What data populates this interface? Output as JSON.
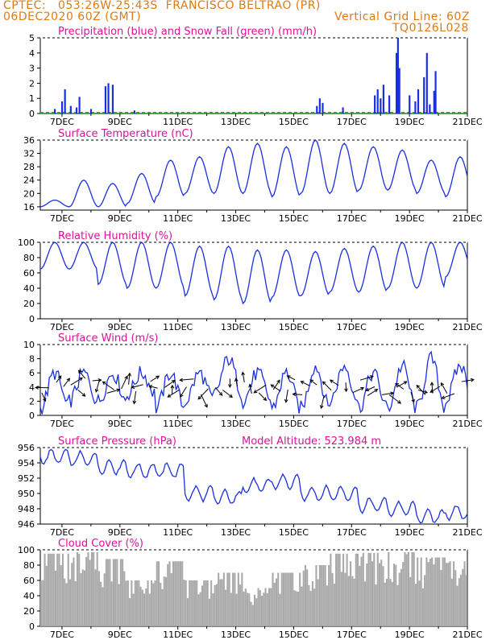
{
  "header": {
    "line1_left": "CPTEC:   053:26W-25:43S  FRANCISCO BELTRAO (PR)",
    "line2_left": "06DEC2020 60Z (GMT)",
    "line2_right": "Vertical Grid Line: 60Z",
    "line3_right": "TQ0126L028"
  },
  "colors": {
    "header": "#e07a10",
    "title": "#e0109a",
    "line": "#1a2fe0",
    "snow": "#20b020",
    "cloud": "#a9a9a9"
  },
  "x_ticks": [
    "7DEC",
    "9DEC",
    "11DEC",
    "13DEC",
    "15DEC",
    "17DEC",
    "19DEC",
    "21DEC"
  ],
  "chart_data": [
    {
      "type": "bar",
      "title": "Precipitation (blue) and Snow Fall (green) (mm/h)",
      "ylim": [
        0,
        5
      ],
      "yticks": [
        "0",
        "1",
        "2",
        "3",
        "4",
        "5"
      ],
      "series": [
        {
          "name": "Precipitation",
          "points": [
            [
              6.75,
              0.3
            ],
            [
              7.0,
              0.8
            ],
            [
              7.1,
              1.6
            ],
            [
              7.3,
              0.5
            ],
            [
              7.5,
              0.4
            ],
            [
              7.6,
              1.1
            ],
            [
              8.0,
              0.3
            ],
            [
              8.5,
              1.8
            ],
            [
              8.6,
              2.0
            ],
            [
              8.75,
              1.9
            ],
            [
              9.5,
              0.2
            ],
            [
              15.8,
              0.5
            ],
            [
              15.9,
              1.0
            ],
            [
              16.0,
              0.7
            ],
            [
              16.7,
              0.4
            ],
            [
              17.8,
              1.2
            ],
            [
              17.9,
              1.6
            ],
            [
              18.0,
              1.0
            ],
            [
              18.1,
              1.9
            ],
            [
              18.3,
              1.2
            ],
            [
              18.55,
              4.0
            ],
            [
              18.6,
              5.0
            ],
            [
              18.65,
              3.0
            ],
            [
              19.0,
              1.2
            ],
            [
              19.2,
              0.8
            ],
            [
              19.3,
              1.6
            ],
            [
              19.5,
              2.4
            ],
            [
              19.6,
              4.0
            ],
            [
              19.7,
              0.6
            ],
            [
              19.85,
              1.5
            ],
            [
              19.9,
              2.8
            ]
          ]
        },
        {
          "name": "Snow Fall",
          "points": []
        }
      ]
    },
    {
      "type": "line",
      "title": "Surface Temperature (nC)",
      "ylim": [
        15,
        36
      ],
      "yticks": [
        "16",
        "20",
        "24",
        "28",
        "32",
        "36"
      ],
      "day_min": [
        16,
        16,
        16,
        17,
        19,
        20,
        20,
        20,
        19,
        20,
        20,
        21,
        21,
        20,
        19,
        18
      ],
      "day_max": [
        18,
        24,
        23,
        26,
        30,
        31,
        34,
        35,
        34,
        36,
        35,
        34,
        33,
        30,
        31,
        30
      ]
    },
    {
      "type": "line",
      "title": "Relative Humidity (%)",
      "ylim": [
        0,
        100
      ],
      "yticks": [
        "0",
        "20",
        "40",
        "60",
        "80",
        "100"
      ],
      "day_min": [
        65,
        65,
        45,
        40,
        40,
        30,
        25,
        20,
        28,
        30,
        35,
        35,
        40,
        40,
        55,
        60
      ],
      "day_max": [
        100,
        100,
        100,
        100,
        100,
        95,
        95,
        90,
        90,
        88,
        92,
        95,
        100,
        100,
        100,
        100
      ]
    },
    {
      "type": "line",
      "title": "Surface Wind (m/s)",
      "ylim": [
        0,
        10
      ],
      "yticks": [
        "0",
        "2",
        "4",
        "6",
        "8",
        "10"
      ],
      "day_min": [
        1,
        2,
        2,
        3,
        1,
        2,
        3,
        2,
        1,
        1,
        2,
        1,
        1,
        1,
        2,
        3
      ],
      "day_max": [
        6,
        6,
        6,
        6,
        6,
        6,
        8,
        6,
        6,
        7,
        7,
        6,
        7,
        8,
        7,
        7
      ]
    },
    {
      "type": "line",
      "title": "Surface Pressure (hPa)",
      "annotation": "Model Altitude: 523.984 m",
      "ylim": [
        946,
        956
      ],
      "yticks": [
        "946",
        "948",
        "950",
        "952",
        "954",
        "956"
      ],
      "trend": [
        954.8,
        954.5,
        953.5,
        953.0,
        953.0,
        950.0,
        949.5,
        951.0,
        951.5,
        950.0,
        950.0,
        948.5,
        948.0,
        947.0,
        947.5,
        947.5
      ]
    },
    {
      "type": "bar",
      "title": "Cloud Cover (%)",
      "ylim": [
        0,
        100
      ],
      "yticks": [
        "0",
        "20",
        "40",
        "60",
        "80",
        "100"
      ],
      "day_level": [
        95,
        97,
        88,
        60,
        85,
        60,
        70,
        50,
        70,
        80,
        95,
        96,
        97,
        90,
        85,
        60
      ]
    }
  ]
}
